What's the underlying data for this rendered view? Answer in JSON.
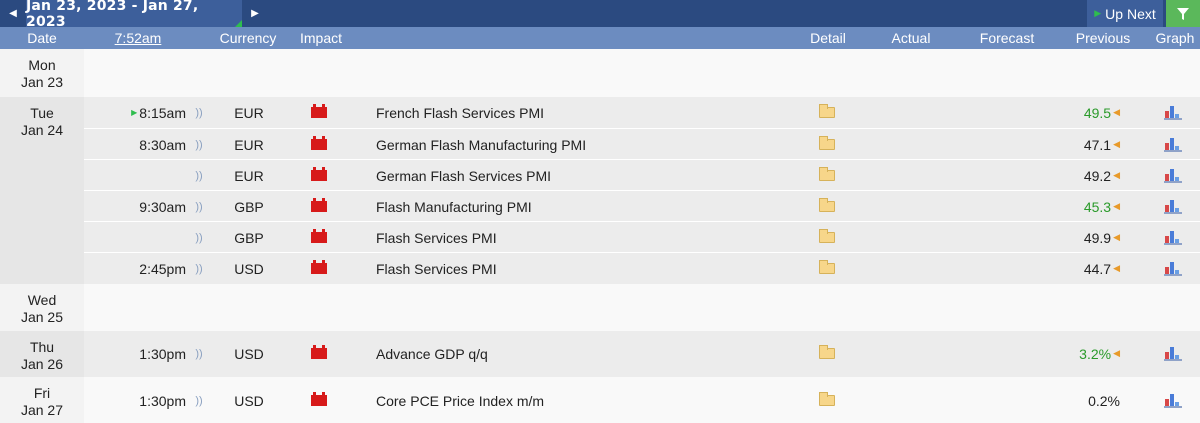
{
  "toolbar": {
    "date_range": "Jan 23, 2023 - Jan 27, 2023",
    "up_next": "Up Next",
    "prev_icon": "chevron-left-icon",
    "next_icon": "chevron-right-icon",
    "filter_icon": "filter-icon"
  },
  "columns": {
    "date": "Date",
    "time": "7:52am",
    "currency": "Currency",
    "impact": "Impact",
    "detail": "Detail",
    "actual": "Actual",
    "forecast": "Forecast",
    "previous": "Previous",
    "graph": "Graph"
  },
  "days": [
    {
      "weekday": "Mon",
      "date": "Jan 23",
      "events": []
    },
    {
      "weekday": "Tue",
      "date": "Jan 24",
      "events": [
        {
          "time": "8:15am",
          "currency": "EUR",
          "title": "French Flash Services PMI",
          "previous": "49.5",
          "previous_green": true,
          "next_up": true
        },
        {
          "time": "8:30am",
          "currency": "EUR",
          "title": "German Flash Manufacturing PMI",
          "previous": "47.1",
          "previous_green": false
        },
        {
          "time": "",
          "currency": "EUR",
          "title": "German Flash Services PMI",
          "previous": "49.2",
          "previous_green": false
        },
        {
          "time": "9:30am",
          "currency": "GBP",
          "title": "Flash Manufacturing PMI",
          "previous": "45.3",
          "previous_green": true
        },
        {
          "time": "",
          "currency": "GBP",
          "title": "Flash Services PMI",
          "previous": "49.9",
          "previous_green": false
        },
        {
          "time": "2:45pm",
          "currency": "USD",
          "title": "Flash Services PMI",
          "previous": "44.7",
          "previous_green": false
        }
      ]
    },
    {
      "weekday": "Wed",
      "date": "Jan 25",
      "events": []
    },
    {
      "weekday": "Thu",
      "date": "Jan 26",
      "events": [
        {
          "time": "1:30pm",
          "currency": "USD",
          "title": "Advance GDP q/q",
          "previous": "3.2%",
          "previous_green": true
        }
      ]
    },
    {
      "weekday": "Fri",
      "date": "Jan 27",
      "events": [
        {
          "time": "1:30pm",
          "currency": "USD",
          "title": "Core PCE Price Index m/m",
          "previous": "0.2%",
          "previous_green": false,
          "no_arrow": true
        }
      ]
    }
  ],
  "colors": {
    "topbar": "#2b4a80",
    "header": "#6c8cc0",
    "impact_high": "#d71a1a",
    "revised_up": "#2a9a2a",
    "revision_arrow": "#e89a2a"
  }
}
